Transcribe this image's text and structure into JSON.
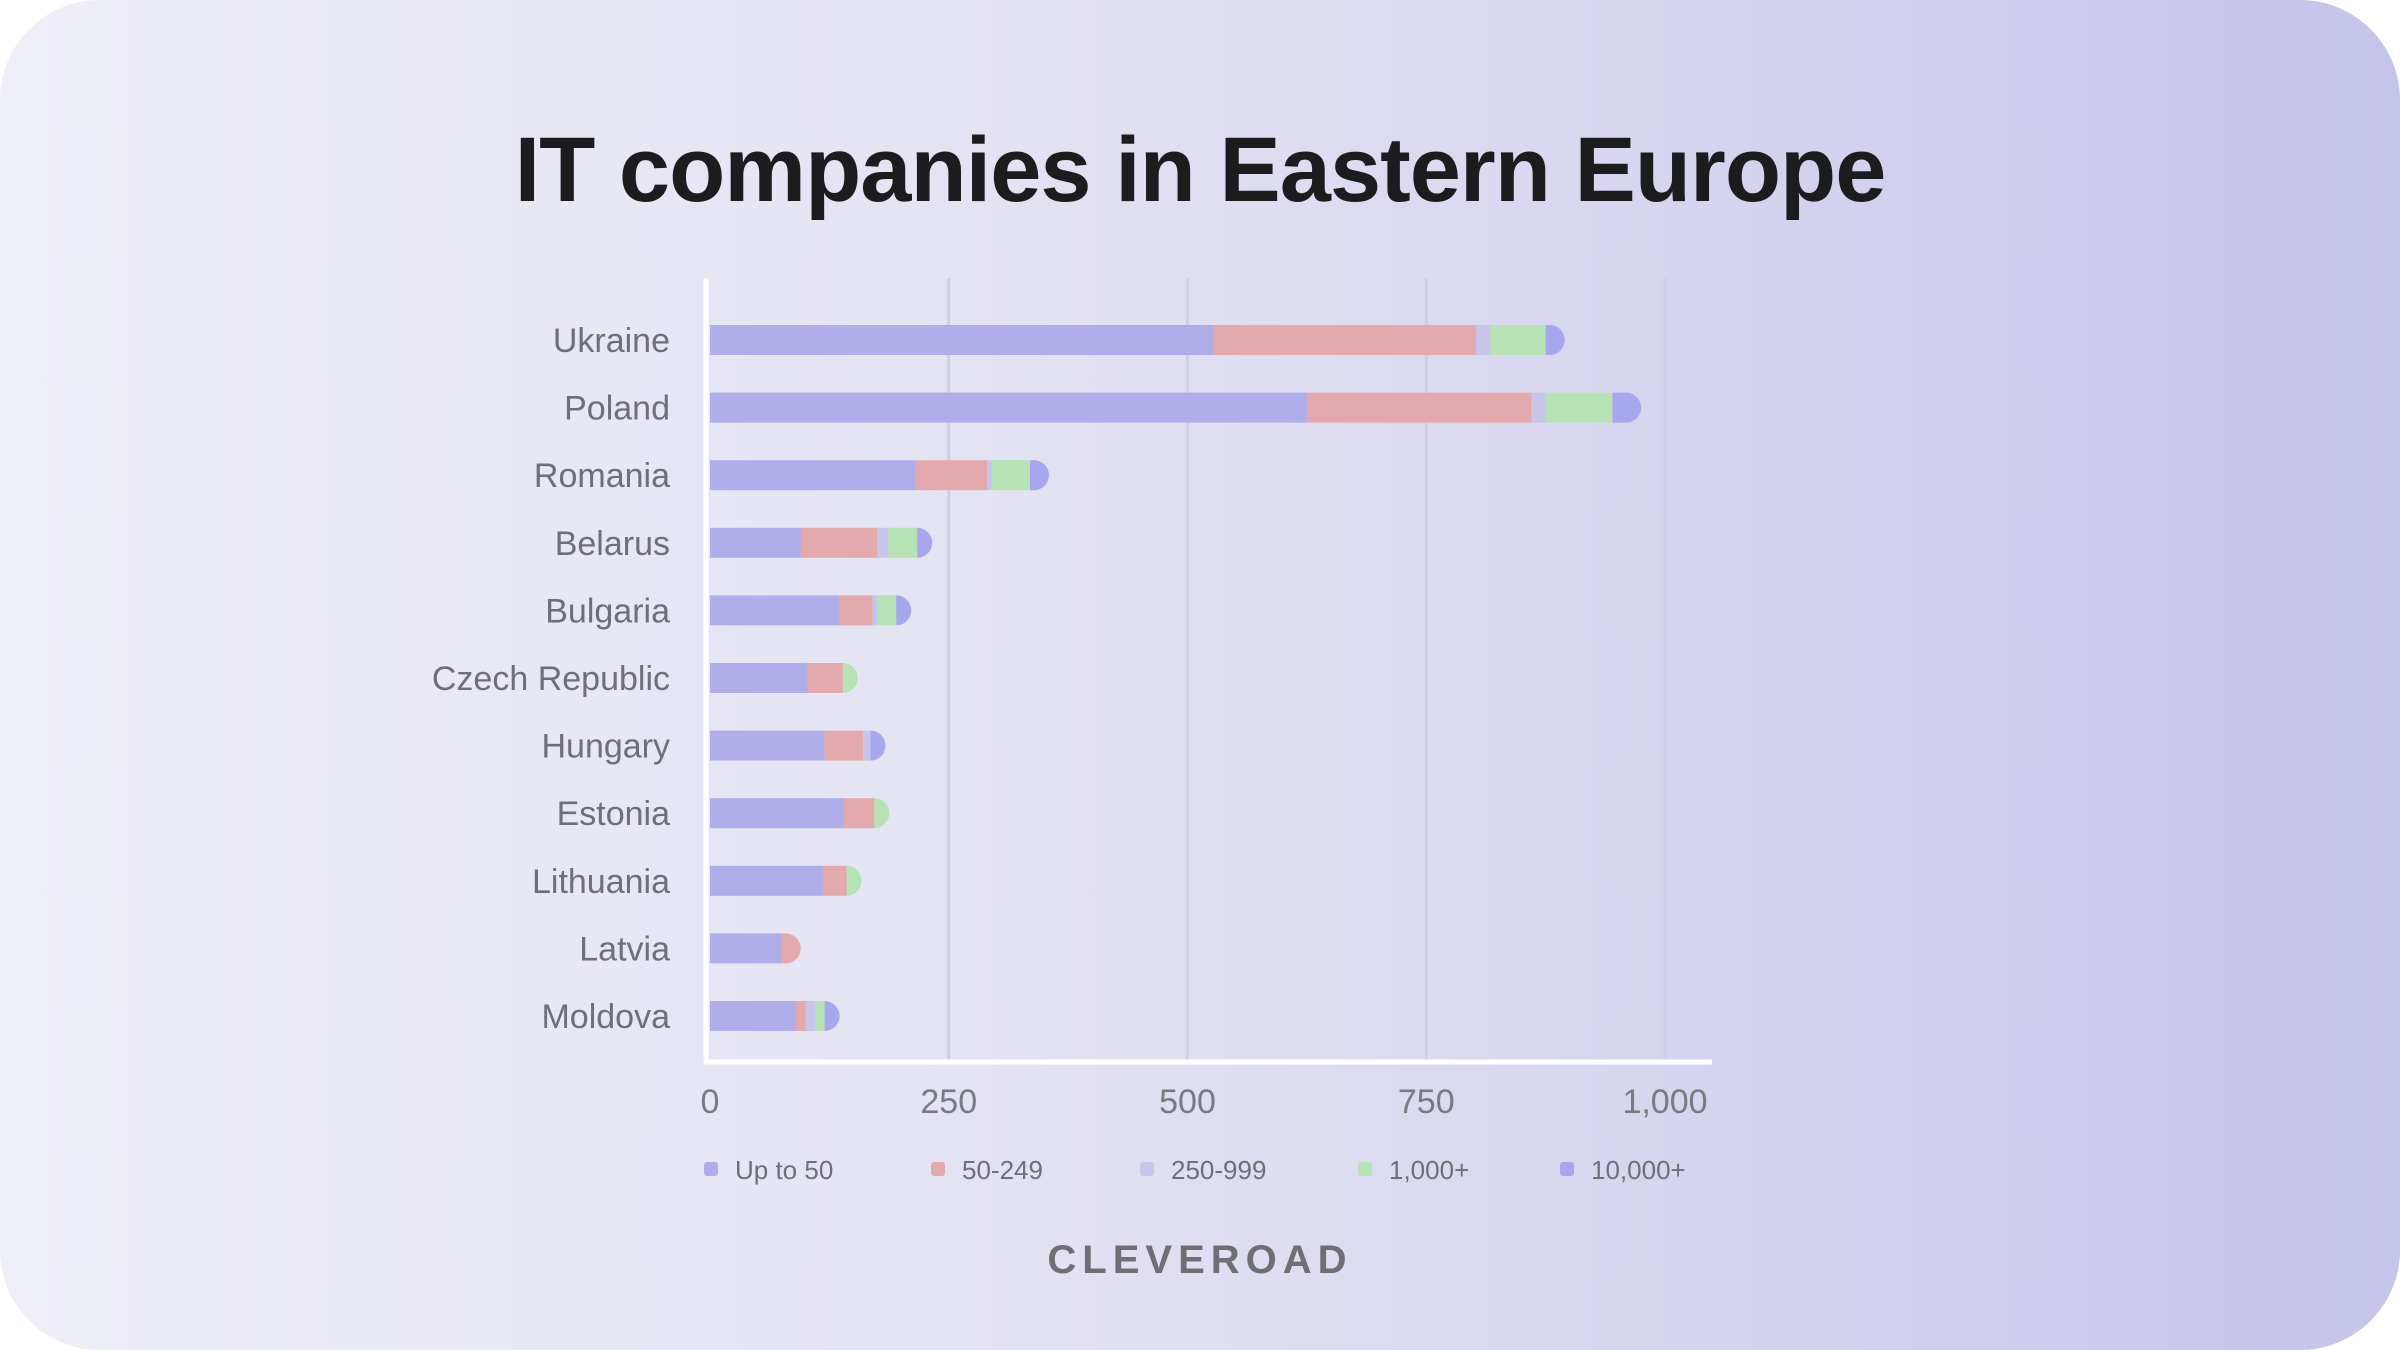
{
  "title": "IT companies in Eastern Europe",
  "brand": "CLEVEROAD",
  "colors": {
    "up_to_50": "#afaeeb",
    "50_249": "#e4a9ac",
    "250_999": "#c7c6ea",
    "1000_plus": "#b7e2b6",
    "10000_plus": "#a8a7ee"
  },
  "chart_data": {
    "type": "bar",
    "orientation": "horizontal",
    "stacked": true,
    "title": "IT companies in Eastern Europe",
    "categories": [
      "Ukraine",
      "Poland",
      "Romania",
      "Belarus",
      "Bulgaria",
      "Czech Republic",
      "Hungary",
      "Estonia",
      "Lithuania",
      "Latvia",
      "Moldova"
    ],
    "series": [
      {
        "name": "Up to 50",
        "color": "#afaeeb",
        "values": [
          527,
          625,
          215,
          95,
          135,
          102,
          120,
          140,
          118,
          75,
          90
        ]
      },
      {
        "name": "50-249",
        "color": "#e4a9ac",
        "values": [
          275,
          235,
          75,
          80,
          35,
          37,
          40,
          32,
          25,
          20,
          10
        ]
      },
      {
        "name": "250-999",
        "color": "#c7c6ea",
        "values": [
          15,
          15,
          5,
          12,
          5,
          0,
          8,
          0,
          0,
          0,
          10
        ]
      },
      {
        "name": "1,000+",
        "color": "#b7e2b6",
        "values": [
          58,
          70,
          40,
          30,
          20,
          15,
          0,
          15,
          15,
          0,
          10
        ]
      },
      {
        "name": "10,000+",
        "color": "#a8a7ee",
        "values": [
          20,
          30,
          20,
          12,
          8,
          0,
          8,
          0,
          0,
          0,
          5
        ]
      }
    ],
    "x_ticks": [
      "0",
      "250",
      "500",
      "750",
      "1,000"
    ],
    "xlim": [
      0,
      1000
    ],
    "grid": true,
    "legend": "bottom"
  }
}
